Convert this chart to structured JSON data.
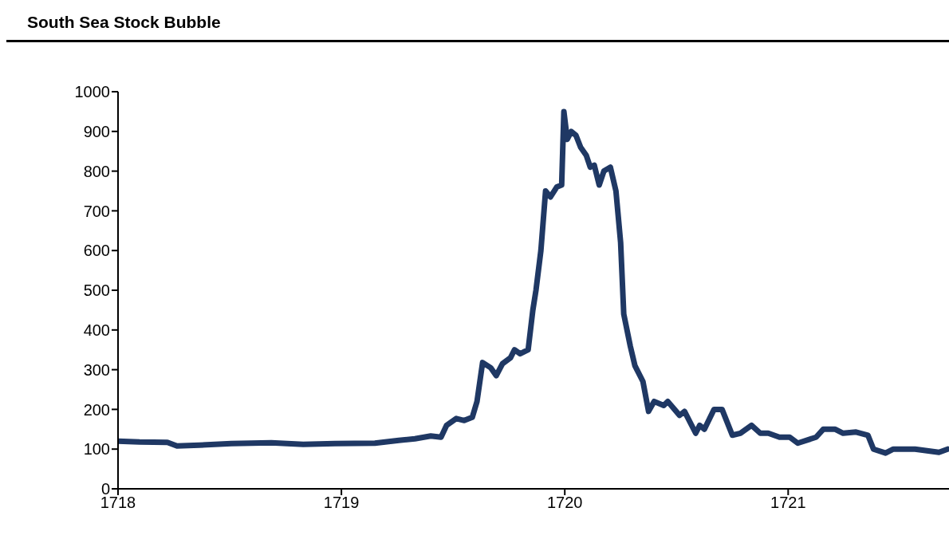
{
  "chart_data": {
    "type": "line",
    "title": "South Sea Stock Bubble",
    "x": [
      1718,
      1718.096,
      1718.221,
      1718.264,
      1718.364,
      1718.507,
      1718.686,
      1718.829,
      1718.971,
      1719.15,
      1719.257,
      1719.329,
      1719.4,
      1719.446,
      1719.471,
      1719.514,
      1719.55,
      1719.586,
      1719.607,
      1719.632,
      1719.668,
      1719.693,
      1719.721,
      1719.757,
      1719.775,
      1719.8,
      1719.836,
      1719.857,
      1719.871,
      1719.893,
      1719.914,
      1719.936,
      1719.964,
      1719.986,
      1719.996,
      1720.011,
      1720.029,
      1720.05,
      1720.071,
      1720.096,
      1720.114,
      1720.132,
      1720.154,
      1720.175,
      1720.204,
      1720.229,
      1720.25,
      1720.264,
      1720.293,
      1720.314,
      1720.35,
      1720.375,
      1720.4,
      1720.443,
      1720.461,
      1720.514,
      1720.536,
      1720.586,
      1720.604,
      1720.625,
      1720.668,
      1720.704,
      1720.75,
      1720.786,
      1720.836,
      1720.875,
      1720.911,
      1720.961,
      1721.007,
      1721.043,
      1721.125,
      1721.157,
      1721.211,
      1721.246,
      1721.304,
      1721.357,
      1721.382,
      1721.436,
      1721.471,
      1721.568,
      1721.675,
      1721.714
    ],
    "series": [
      {
        "color": "#1f3864",
        "values": [
          120,
          118,
          117,
          108,
          110,
          114,
          116,
          112,
          114,
          115,
          122,
          126,
          133,
          130,
          160,
          177,
          172,
          180,
          220,
          318,
          305,
          285,
          315,
          330,
          350,
          340,
          350,
          450,
          500,
          600,
          750,
          735,
          760,
          765,
          950,
          880,
          900,
          890,
          860,
          840,
          810,
          815,
          765,
          800,
          810,
          750,
          620,
          440,
          360,
          310,
          270,
          195,
          220,
          210,
          220,
          185,
          195,
          140,
          160,
          150,
          200,
          200,
          135,
          140,
          160,
          140,
          140,
          130,
          130,
          115,
          130,
          150,
          150,
          140,
          143,
          135,
          100,
          90,
          100,
          100,
          92,
          100
        ]
      }
    ],
    "xlim": [
      1718,
      1721.72
    ],
    "xticks": [
      1718,
      1719,
      1720,
      1721
    ],
    "ylim": [
      0,
      1000
    ],
    "yticks": [
      0,
      100,
      200,
      300,
      400,
      500,
      600,
      700,
      800,
      900,
      1000
    ],
    "grid": false,
    "legend": false,
    "marker": "none",
    "line_style": "solid"
  }
}
